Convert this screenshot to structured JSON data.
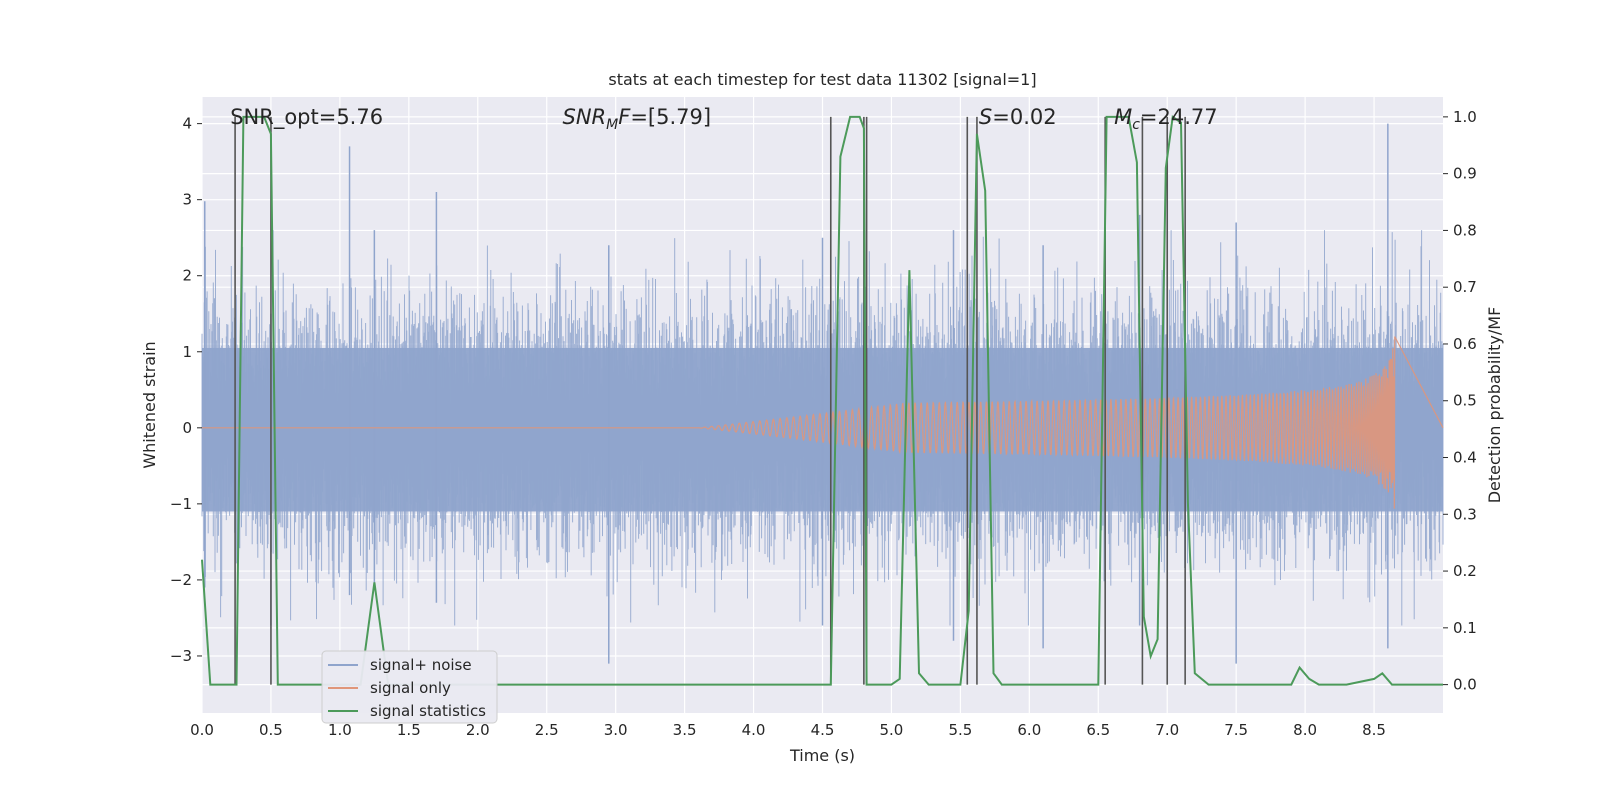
{
  "chart_data": {
    "type": "line",
    "title": "stats at each timestep for test data 11302 [signal=1]",
    "xlabel": "Time (s)",
    "ylabel_left": "Whitened strain",
    "ylabel_right": "Detection probability/MF",
    "xlim": [
      0,
      9.0
    ],
    "ylim_left": [
      -3.75,
      4.35
    ],
    "ylim_right": [
      -0.05,
      1.035
    ],
    "x_ticks": [
      0,
      0.5,
      1,
      1.5,
      2,
      2.5,
      3,
      3.5,
      4,
      4.5,
      5,
      5.5,
      6,
      6.5,
      7,
      7.5,
      8,
      8.5
    ],
    "x_tick_labels": [
      "0.0",
      "0.5",
      "1.0",
      "1.5",
      "2.0",
      "2.5",
      "3.0",
      "3.5",
      "4.0",
      "4.5",
      "5.0",
      "5.5",
      "6.0",
      "6.5",
      "7.0",
      "7.5",
      "8.0",
      "8.5"
    ],
    "y_ticks_left": [
      -3,
      -2,
      -1,
      0,
      1,
      2,
      3,
      4
    ],
    "y_tick_labels_left": [
      "−3",
      "−2",
      "−1",
      "0",
      "1",
      "2",
      "3",
      "4"
    ],
    "y_ticks_right": [
      0,
      0.1,
      0.2,
      0.3,
      0.4,
      0.5,
      0.6,
      0.7,
      0.8,
      0.9,
      1.0
    ],
    "y_tick_labels_right": [
      "0.0",
      "0.1",
      "0.2",
      "0.3",
      "0.4",
      "0.5",
      "0.6",
      "0.7",
      "0.8",
      "0.9",
      "1.0"
    ],
    "grid": true,
    "legend_position": "lower-left",
    "annotations": [
      {
        "text": "SNR_opt=5.76",
        "x": 0.19
      },
      {
        "text": "SNR",
        "sub": "M",
        "tail": "F=[5.79]",
        "italic": true,
        "x": 2.6
      },
      {
        "text": "S",
        "tail": "=0.02",
        "italic": true,
        "x": 5.62
      },
      {
        "text": "M",
        "sub": "c",
        "tail": "=24.77",
        "italic": true,
        "x": 6.6
      }
    ],
    "series": [
      {
        "name": "signal+ noise",
        "color": "#8fa4cc",
        "axis": "left",
        "kind": "noise",
        "sigma": 0.72,
        "spikes": [
          {
            "x": 0.02,
            "top": 2.98,
            "bottom": -2.1
          },
          {
            "x": 0.5,
            "top": 1.5,
            "bottom": -2.6
          },
          {
            "x": 1.07,
            "top": 3.7,
            "bottom": -2.2
          },
          {
            "x": 1.25,
            "top": 2.6,
            "bottom": -2.1
          },
          {
            "x": 1.7,
            "top": 3.1,
            "bottom": -2.3
          },
          {
            "x": 2.95,
            "top": 2.4,
            "bottom": -3.1
          },
          {
            "x": 4.5,
            "top": 2.5,
            "bottom": -2.6
          },
          {
            "x": 5.45,
            "top": 2.6,
            "bottom": -2.8
          },
          {
            "x": 6.1,
            "top": 2.4,
            "bottom": -2.9
          },
          {
            "x": 6.8,
            "top": 2.8,
            "bottom": -2.6
          },
          {
            "x": 7.5,
            "top": 2.7,
            "bottom": -3.1
          },
          {
            "x": 8.6,
            "top": 4.0,
            "bottom": -2.9
          }
        ]
      },
      {
        "name": "signal only",
        "color": "#e0967a",
        "axis": "left",
        "kind": "chirp",
        "t_start": 3.6,
        "t_merge": 8.65,
        "peak_amp": 1.2
      },
      {
        "name": "signal statistics",
        "color": "#4c9a5a",
        "axis": "right",
        "kind": "line",
        "x": [
          0.0,
          0.06,
          0.25,
          0.3,
          0.45,
          0.5,
          0.55,
          0.7,
          0.9,
          1.15,
          1.25,
          1.35,
          1.5,
          2.0,
          3.0,
          4.0,
          4.56,
          4.63,
          4.7,
          4.77,
          4.8,
          4.82,
          4.88,
          5.0,
          5.06,
          5.13,
          5.2,
          5.27,
          5.5,
          5.56,
          5.62,
          5.68,
          5.74,
          5.8,
          6.0,
          6.5,
          6.56,
          6.62,
          6.72,
          6.78,
          6.83,
          6.88,
          6.93,
          6.99,
          7.04,
          7.1,
          7.15,
          7.2,
          7.3,
          7.5,
          7.9,
          7.96,
          8.03,
          8.1,
          8.3,
          8.5,
          8.56,
          8.63,
          8.7,
          9.0
        ],
        "y": [
          0.22,
          0.0,
          0.0,
          1.0,
          1.0,
          0.97,
          0.0,
          0.0,
          0.0,
          0.0,
          0.18,
          0.0,
          0.0,
          0.0,
          0.0,
          0.0,
          0.0,
          0.93,
          1.0,
          1.0,
          0.98,
          0.0,
          0.0,
          0.0,
          0.01,
          0.73,
          0.02,
          0.0,
          0.0,
          0.13,
          0.97,
          0.87,
          0.02,
          0.0,
          0.0,
          0.0,
          1.0,
          1.0,
          1.0,
          0.92,
          0.12,
          0.05,
          0.08,
          0.91,
          1.0,
          0.99,
          0.32,
          0.02,
          0.0,
          0.0,
          0.0,
          0.03,
          0.01,
          0.0,
          0.0,
          0.01,
          0.02,
          0.0,
          0.0,
          0.0
        ]
      }
    ],
    "vertical_lines": {
      "color": "#555555",
      "axis": "right",
      "lines": [
        {
          "x": 0.24,
          "y0": 0.0,
          "y1": 1.0
        },
        {
          "x": 0.5,
          "y0": 0.0,
          "y1": 1.0
        },
        {
          "x": 4.56,
          "y0": 0.0,
          "y1": 1.0
        },
        {
          "x": 4.8,
          "y0": 0.0,
          "y1": 1.0
        },
        {
          "x": 4.82,
          "y0": 0.0,
          "y1": 1.0
        },
        {
          "x": 5.55,
          "y0": 0.0,
          "y1": 1.0
        },
        {
          "x": 5.62,
          "y0": 0.0,
          "y1": 1.0
        },
        {
          "x": 6.55,
          "y0": 0.0,
          "y1": 1.0
        },
        {
          "x": 6.82,
          "y0": 0.0,
          "y1": 1.0
        },
        {
          "x": 7.0,
          "y0": 0.0,
          "y1": 1.0
        },
        {
          "x": 7.13,
          "y0": 0.0,
          "y1": 1.0
        }
      ]
    }
  }
}
